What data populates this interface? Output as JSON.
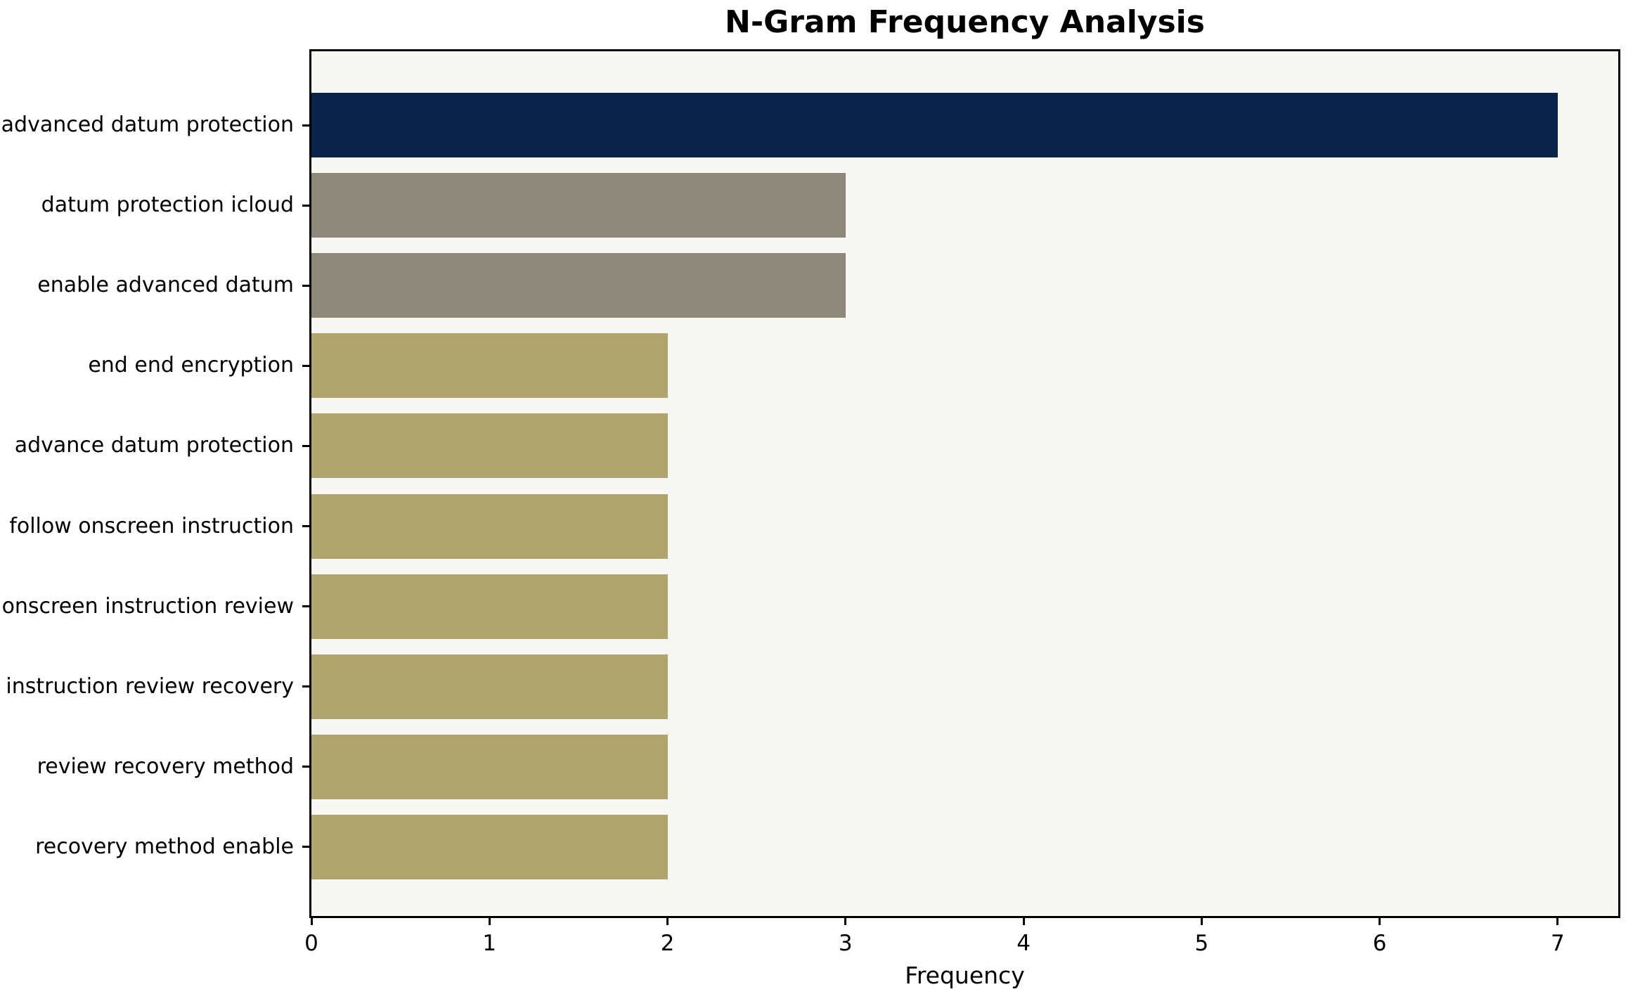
{
  "chart_data": {
    "type": "bar",
    "orientation": "horizontal",
    "title": "N-Gram Frequency Analysis",
    "xlabel": "Frequency",
    "ylabel": "",
    "categories": [
      "advanced datum protection",
      "datum protection icloud",
      "enable advanced datum",
      "end end encryption",
      "advance datum protection",
      "follow onscreen instruction",
      "onscreen instruction review",
      "instruction review recovery",
      "review recovery method",
      "recovery method enable"
    ],
    "values": [
      7,
      3,
      3,
      2,
      2,
      2,
      2,
      2,
      2,
      2
    ],
    "bar_colors": [
      "#0a2349",
      "#8f897c",
      "#8f897c",
      "#b0a66d",
      "#b0a66d",
      "#b0a66d",
      "#b0a66d",
      "#b0a66d",
      "#b0a66d",
      "#b0a66d"
    ],
    "x_ticks": [
      "0",
      "1",
      "2",
      "3",
      "4",
      "5",
      "6",
      "7"
    ],
    "x_tick_values": [
      0,
      1,
      2,
      3,
      4,
      5,
      6,
      7
    ],
    "xlim": [
      0,
      7.34
    ],
    "grid": false,
    "legend": null,
    "plot_background": "#f7f7f4",
    "page_background": "#ffffff",
    "spine_color": "#000000",
    "text_color": "#000000"
  }
}
